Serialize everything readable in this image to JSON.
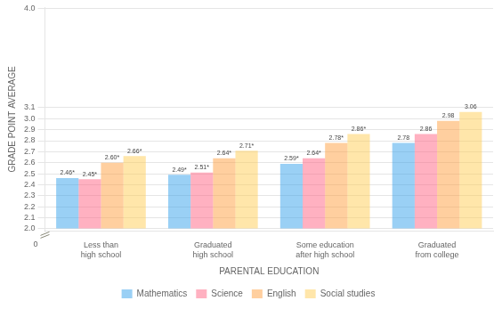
{
  "chart_data": {
    "type": "bar",
    "xlabel": "PARENTAL EDUCATION",
    "ylabel": "GRADE POINT AVERAGE",
    "categories": [
      "Less than\nhigh school",
      "Graduated\nhigh school",
      "Some education\nafter high school",
      "Graduated\nfrom college"
    ],
    "series": [
      {
        "name": "Mathematics",
        "values": [
          2.46,
          2.49,
          2.59,
          2.78
        ],
        "value_labels": [
          "2.46*",
          "2.49*",
          "2.59*",
          "2.78"
        ]
      },
      {
        "name": "Science",
        "values": [
          2.45,
          2.51,
          2.64,
          2.86
        ],
        "value_labels": [
          "2.45*",
          "2.51*",
          "2.64*",
          "2.86"
        ]
      },
      {
        "name": "English",
        "values": [
          2.6,
          2.64,
          2.78,
          2.98
        ],
        "value_labels": [
          "2.60*",
          "2.64*",
          "2.78*",
          "2.98"
        ]
      },
      {
        "name": "Social studies",
        "values": [
          2.66,
          2.71,
          2.86,
          3.06
        ],
        "value_labels": [
          "2.66*",
          "2.71*",
          "2.86*",
          "3.06"
        ]
      }
    ],
    "ylim": [
      1.98,
      4.01
    ],
    "yticks": [
      {
        "value": 2.0,
        "label": "2.0"
      },
      2.1,
      2.2,
      2.3,
      2.4,
      2.5,
      2.6,
      2.7,
      2.8,
      2.9,
      {
        "value": 3.0,
        "label": "3.0"
      },
      3.1,
      {
        "value": 4.0,
        "label": "4.0"
      }
    ],
    "annotations": [
      {
        "text": "0"
      }
    ],
    "grid": true,
    "data_labels": true,
    "legend": "bottom"
  }
}
